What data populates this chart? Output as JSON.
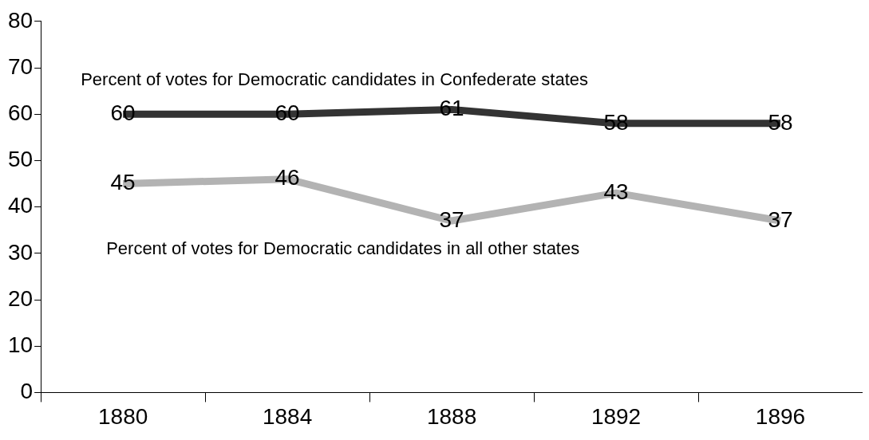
{
  "chart_data": {
    "type": "line",
    "categories": [
      "1880",
      "1884",
      "1888",
      "1892",
      "1896"
    ],
    "series": [
      {
        "name": "Percent of votes for Democratic candidates in Confederate states",
        "color": "#333333",
        "values": [
          60,
          60,
          61,
          58,
          58
        ]
      },
      {
        "name": "Percent of votes for Democratic candidates in all other states",
        "color": "#b3b3b3",
        "values": [
          45,
          46,
          37,
          43,
          37
        ]
      }
    ],
    "ylim": [
      0,
      80
    ],
    "yticks": [
      0,
      10,
      20,
      30,
      40,
      50,
      60,
      70,
      80
    ],
    "grid": false,
    "legend": false,
    "marker": "none",
    "line_style": "solid",
    "data_labels": true
  }
}
